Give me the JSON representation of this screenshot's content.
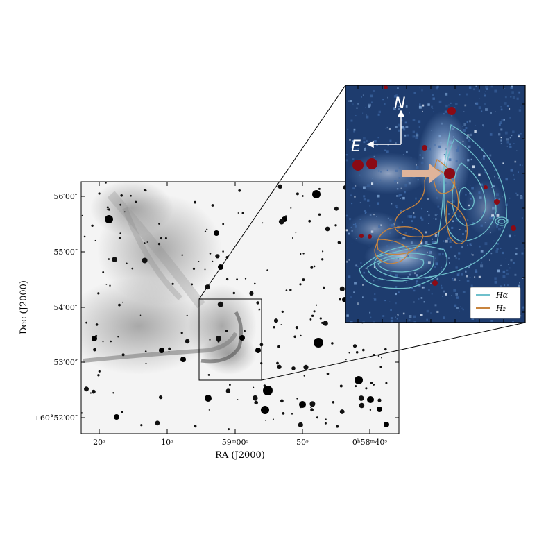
{
  "main_panel": {
    "x_axis_title": "RA (J2000)",
    "y_axis_title": "Dec (J2000)",
    "x_ticks": [
      "20ˢ",
      "10ˢ",
      "59ᵐ00ˢ",
      "50ˢ",
      "0ʰ58ᵐ40ˢ"
    ],
    "y_ticks": [
      "56′00″",
      "55′00″",
      "54′00″",
      "53′00″",
      "+60°52′00″"
    ]
  },
  "inset_panel": {
    "compass_north": "N",
    "compass_east": "E",
    "legend": [
      {
        "label": "Hα",
        "color": "#6fc0cc"
      },
      {
        "label": "H₂",
        "color": "#c8843e"
      }
    ],
    "arrow_color": "#e0b49a",
    "background_color": "#1e3c6e"
  }
}
